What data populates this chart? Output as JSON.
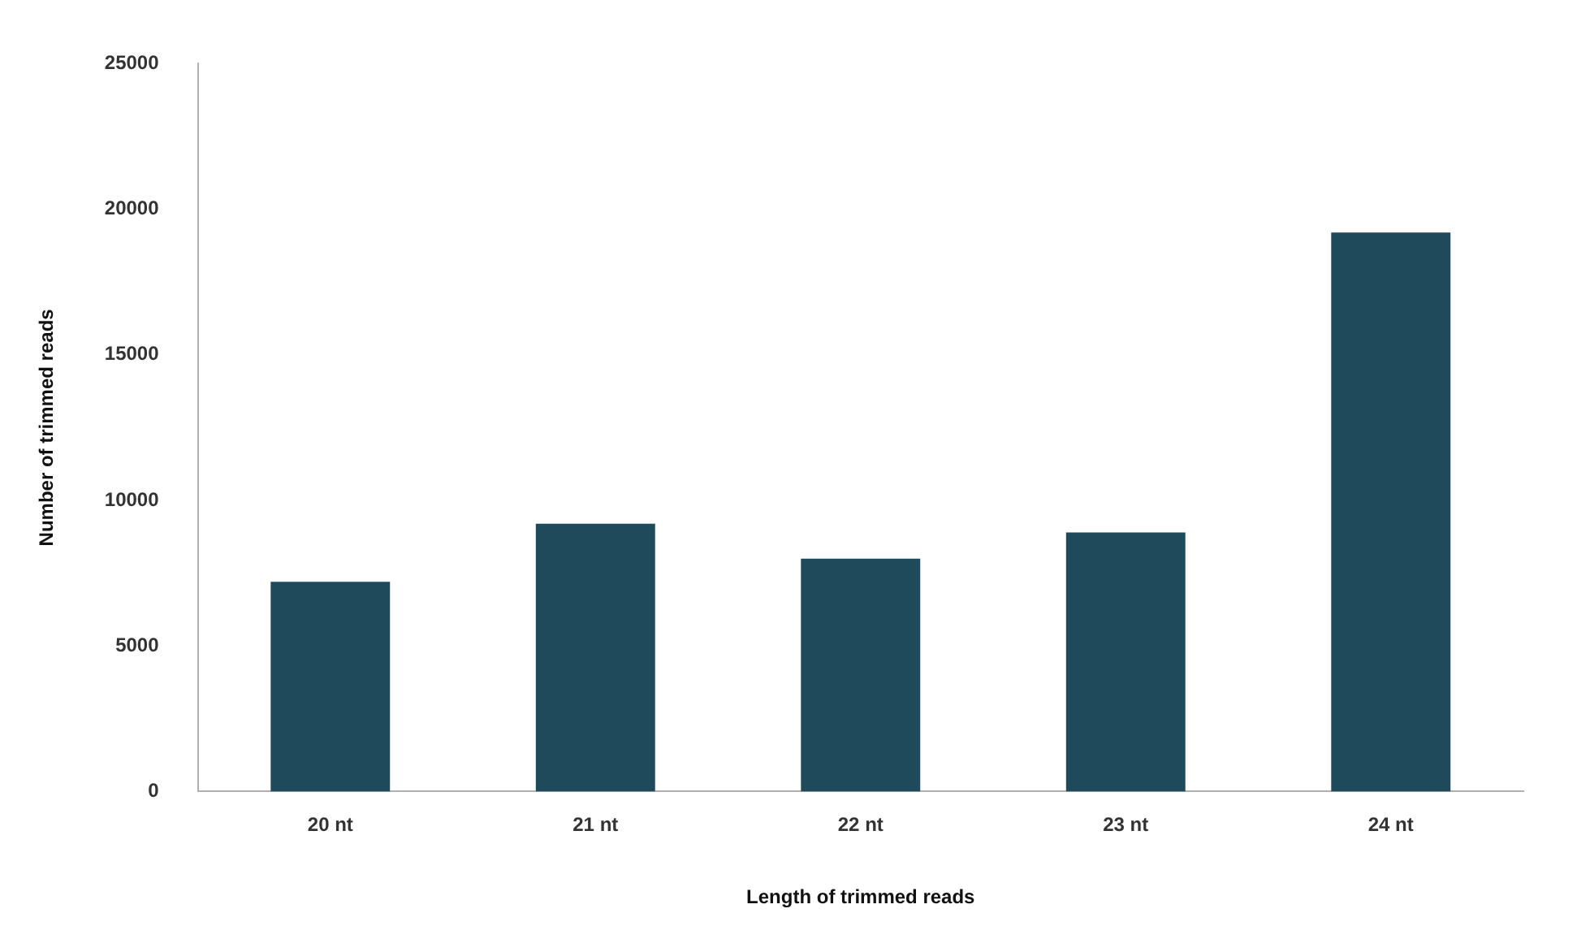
{
  "chart_data": {
    "type": "bar",
    "xlabel": "Length of trimmed reads",
    "ylabel": "Number of trimmed reads",
    "categories": [
      "20 nt",
      "21 nt",
      "22 nt",
      "23 nt",
      "24 nt"
    ],
    "values": [
      7200,
      9200,
      8000,
      8900,
      19200
    ],
    "color": "#1f4a5c",
    "ylim": [
      0,
      25000
    ],
    "yticks": [
      0,
      5000,
      10000,
      15000,
      20000,
      25000
    ],
    "grid": false,
    "legend": false
  }
}
